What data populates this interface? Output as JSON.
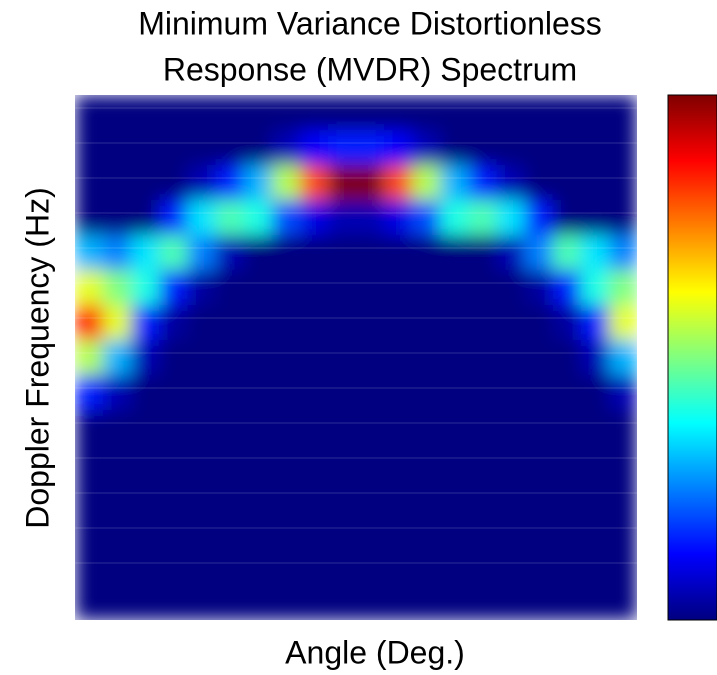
{
  "chart_data": {
    "type": "heatmap",
    "title": [
      "Minimum Variance Distortionless",
      "Response (MVDR) Spectrum"
    ],
    "xlabel": "Angle (Deg.)",
    "ylabel": "Doppler Frequency (Hz)",
    "colormap": "jet",
    "grid": true,
    "values": [
      [
        0,
        0,
        0,
        0,
        0,
        0,
        0,
        0,
        0,
        0,
        0,
        0,
        0,
        0,
        0,
        0,
        0,
        0,
        0,
        0
      ],
      [
        0,
        0,
        0,
        0,
        0,
        0,
        0,
        0.05,
        0.12,
        0.15,
        0.15,
        0.12,
        0.05,
        0,
        0,
        0,
        0,
        0,
        0,
        0
      ],
      [
        0,
        0,
        0,
        0,
        0.05,
        0.15,
        0.3,
        0.55,
        0.8,
        1.0,
        1.0,
        0.8,
        0.55,
        0.3,
        0.15,
        0.05,
        0,
        0,
        0,
        0
      ],
      [
        0,
        0,
        0,
        0.15,
        0.35,
        0.45,
        0.4,
        0.2,
        0.1,
        0.05,
        0.05,
        0.1,
        0.2,
        0.4,
        0.45,
        0.35,
        0.15,
        0,
        0,
        0
      ],
      [
        0.3,
        0.25,
        0.35,
        0.45,
        0.25,
        0.05,
        0,
        0,
        0,
        0,
        0,
        0,
        0,
        0,
        0,
        0.05,
        0.25,
        0.45,
        0.35,
        0.25
      ],
      [
        0.6,
        0.5,
        0.4,
        0.15,
        0.03,
        0,
        0,
        0,
        0,
        0,
        0,
        0,
        0,
        0,
        0,
        0,
        0.03,
        0.15,
        0.4,
        0.5
      ],
      [
        0.85,
        0.6,
        0.15,
        0.03,
        0,
        0,
        0,
        0,
        0,
        0,
        0,
        0,
        0,
        0,
        0,
        0,
        0,
        0.03,
        0.15,
        0.6
      ],
      [
        0.55,
        0.3,
        0.05,
        0,
        0,
        0,
        0,
        0,
        0,
        0,
        0,
        0,
        0,
        0,
        0,
        0,
        0,
        0,
        0.05,
        0.3
      ],
      [
        0.15,
        0.05,
        0,
        0,
        0,
        0,
        0,
        0,
        0,
        0,
        0,
        0,
        0,
        0,
        0,
        0,
        0,
        0,
        0,
        0.05
      ],
      [
        0,
        0,
        0,
        0,
        0,
        0,
        0,
        0,
        0,
        0,
        0,
        0,
        0,
        0,
        0,
        0,
        0,
        0,
        0,
        0
      ],
      [
        0,
        0,
        0,
        0,
        0,
        0,
        0,
        0,
        0,
        0,
        0,
        0,
        0,
        0,
        0,
        0,
        0,
        0,
        0,
        0
      ],
      [
        0,
        0,
        0,
        0,
        0,
        0,
        0,
        0,
        0,
        0,
        0,
        0,
        0,
        0,
        0,
        0,
        0,
        0,
        0,
        0
      ],
      [
        0,
        0,
        0,
        0,
        0,
        0,
        0,
        0,
        0,
        0,
        0,
        0,
        0,
        0,
        0,
        0,
        0,
        0,
        0,
        0
      ],
      [
        0,
        0,
        0,
        0,
        0,
        0,
        0,
        0,
        0,
        0,
        0,
        0,
        0,
        0,
        0,
        0,
        0,
        0,
        0,
        0
      ],
      [
        0,
        0,
        0,
        0,
        0,
        0,
        0,
        0,
        0,
        0,
        0,
        0,
        0,
        0,
        0,
        0,
        0,
        0,
        0,
        0
      ]
    ]
  }
}
